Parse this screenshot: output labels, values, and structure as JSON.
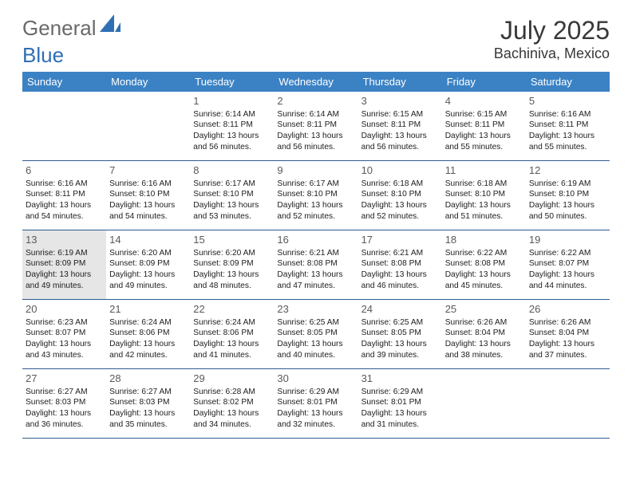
{
  "brand": {
    "part1": "General",
    "part2": "Blue"
  },
  "title": "July 2025",
  "location": "Bachiniva, Mexico",
  "colors": {
    "header_bg": "#3b82c4",
    "header_text": "#ffffff",
    "border": "#2f5b90",
    "daynum": "#5a5a5a",
    "body_text": "#202020",
    "selected_bg": "#e6e6e6",
    "logo_gray": "#6a6a6a",
    "logo_blue": "#2f6fb3",
    "title_color": "#383838"
  },
  "dayHeaders": [
    "Sunday",
    "Monday",
    "Tuesday",
    "Wednesday",
    "Thursday",
    "Friday",
    "Saturday"
  ],
  "weeks": [
    [
      {
        "n": "",
        "lines": []
      },
      {
        "n": "",
        "lines": []
      },
      {
        "n": "1",
        "lines": [
          "Sunrise: 6:14 AM",
          "Sunset: 8:11 PM",
          "Daylight: 13 hours and 56 minutes."
        ]
      },
      {
        "n": "2",
        "lines": [
          "Sunrise: 6:14 AM",
          "Sunset: 8:11 PM",
          "Daylight: 13 hours and 56 minutes."
        ]
      },
      {
        "n": "3",
        "lines": [
          "Sunrise: 6:15 AM",
          "Sunset: 8:11 PM",
          "Daylight: 13 hours and 56 minutes."
        ]
      },
      {
        "n": "4",
        "lines": [
          "Sunrise: 6:15 AM",
          "Sunset: 8:11 PM",
          "Daylight: 13 hours and 55 minutes."
        ]
      },
      {
        "n": "5",
        "lines": [
          "Sunrise: 6:16 AM",
          "Sunset: 8:11 PM",
          "Daylight: 13 hours and 55 minutes."
        ]
      }
    ],
    [
      {
        "n": "6",
        "lines": [
          "Sunrise: 6:16 AM",
          "Sunset: 8:11 PM",
          "Daylight: 13 hours and 54 minutes."
        ]
      },
      {
        "n": "7",
        "lines": [
          "Sunrise: 6:16 AM",
          "Sunset: 8:10 PM",
          "Daylight: 13 hours and 54 minutes."
        ]
      },
      {
        "n": "8",
        "lines": [
          "Sunrise: 6:17 AM",
          "Sunset: 8:10 PM",
          "Daylight: 13 hours and 53 minutes."
        ]
      },
      {
        "n": "9",
        "lines": [
          "Sunrise: 6:17 AM",
          "Sunset: 8:10 PM",
          "Daylight: 13 hours and 52 minutes."
        ]
      },
      {
        "n": "10",
        "lines": [
          "Sunrise: 6:18 AM",
          "Sunset: 8:10 PM",
          "Daylight: 13 hours and 52 minutes."
        ]
      },
      {
        "n": "11",
        "lines": [
          "Sunrise: 6:18 AM",
          "Sunset: 8:10 PM",
          "Daylight: 13 hours and 51 minutes."
        ]
      },
      {
        "n": "12",
        "lines": [
          "Sunrise: 6:19 AM",
          "Sunset: 8:10 PM",
          "Daylight: 13 hours and 50 minutes."
        ]
      }
    ],
    [
      {
        "n": "13",
        "selected": true,
        "lines": [
          "Sunrise: 6:19 AM",
          "Sunset: 8:09 PM",
          "Daylight: 13 hours and 49 minutes."
        ]
      },
      {
        "n": "14",
        "lines": [
          "Sunrise: 6:20 AM",
          "Sunset: 8:09 PM",
          "Daylight: 13 hours and 49 minutes."
        ]
      },
      {
        "n": "15",
        "lines": [
          "Sunrise: 6:20 AM",
          "Sunset: 8:09 PM",
          "Daylight: 13 hours and 48 minutes."
        ]
      },
      {
        "n": "16",
        "lines": [
          "Sunrise: 6:21 AM",
          "Sunset: 8:08 PM",
          "Daylight: 13 hours and 47 minutes."
        ]
      },
      {
        "n": "17",
        "lines": [
          "Sunrise: 6:21 AM",
          "Sunset: 8:08 PM",
          "Daylight: 13 hours and 46 minutes."
        ]
      },
      {
        "n": "18",
        "lines": [
          "Sunrise: 6:22 AM",
          "Sunset: 8:08 PM",
          "Daylight: 13 hours and 45 minutes."
        ]
      },
      {
        "n": "19",
        "lines": [
          "Sunrise: 6:22 AM",
          "Sunset: 8:07 PM",
          "Daylight: 13 hours and 44 minutes."
        ]
      }
    ],
    [
      {
        "n": "20",
        "lines": [
          "Sunrise: 6:23 AM",
          "Sunset: 8:07 PM",
          "Daylight: 13 hours and 43 minutes."
        ]
      },
      {
        "n": "21",
        "lines": [
          "Sunrise: 6:24 AM",
          "Sunset: 8:06 PM",
          "Daylight: 13 hours and 42 minutes."
        ]
      },
      {
        "n": "22",
        "lines": [
          "Sunrise: 6:24 AM",
          "Sunset: 8:06 PM",
          "Daylight: 13 hours and 41 minutes."
        ]
      },
      {
        "n": "23",
        "lines": [
          "Sunrise: 6:25 AM",
          "Sunset: 8:05 PM",
          "Daylight: 13 hours and 40 minutes."
        ]
      },
      {
        "n": "24",
        "lines": [
          "Sunrise: 6:25 AM",
          "Sunset: 8:05 PM",
          "Daylight: 13 hours and 39 minutes."
        ]
      },
      {
        "n": "25",
        "lines": [
          "Sunrise: 6:26 AM",
          "Sunset: 8:04 PM",
          "Daylight: 13 hours and 38 minutes."
        ]
      },
      {
        "n": "26",
        "lines": [
          "Sunrise: 6:26 AM",
          "Sunset: 8:04 PM",
          "Daylight: 13 hours and 37 minutes."
        ]
      }
    ],
    [
      {
        "n": "27",
        "lines": [
          "Sunrise: 6:27 AM",
          "Sunset: 8:03 PM",
          "Daylight: 13 hours and 36 minutes."
        ]
      },
      {
        "n": "28",
        "lines": [
          "Sunrise: 6:27 AM",
          "Sunset: 8:03 PM",
          "Daylight: 13 hours and 35 minutes."
        ]
      },
      {
        "n": "29",
        "lines": [
          "Sunrise: 6:28 AM",
          "Sunset: 8:02 PM",
          "Daylight: 13 hours and 34 minutes."
        ]
      },
      {
        "n": "30",
        "lines": [
          "Sunrise: 6:29 AM",
          "Sunset: 8:01 PM",
          "Daylight: 13 hours and 32 minutes."
        ]
      },
      {
        "n": "31",
        "lines": [
          "Sunrise: 6:29 AM",
          "Sunset: 8:01 PM",
          "Daylight: 13 hours and 31 minutes."
        ]
      },
      {
        "n": "",
        "lines": []
      },
      {
        "n": "",
        "lines": []
      }
    ]
  ]
}
